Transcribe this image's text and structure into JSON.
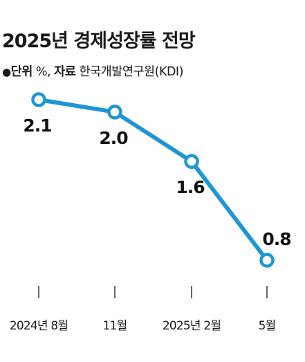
{
  "chart_data": {
    "type": "line",
    "title": "2025년 경제성장률 전망",
    "unit_key": "단위",
    "unit": "%",
    "source_key": "자료",
    "source": "한국개발연구원(KDI)",
    "categories": [
      "2024년 8월",
      "11월",
      "2025년 2월",
      "5월"
    ],
    "values": [
      2.1,
      2.0,
      1.6,
      0.8
    ],
    "value_labels": [
      "2.1",
      "2.0",
      "1.6",
      "0.8"
    ],
    "ylim": [
      0.8,
      2.1
    ],
    "grid": false,
    "legend": "none",
    "colors": {
      "line": "#1f96d4",
      "marker_fill": "#ffffff",
      "text": "#1a1a1a"
    }
  }
}
